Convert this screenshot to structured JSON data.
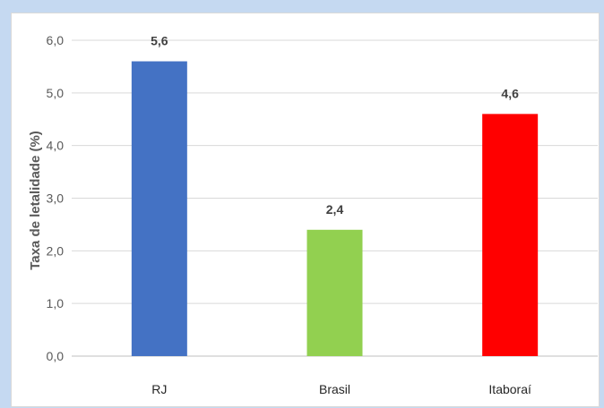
{
  "chart_data": {
    "type": "bar",
    "categories": [
      "RJ",
      "Brasil",
      "Itaboraí"
    ],
    "values": [
      5.6,
      2.4,
      4.6
    ],
    "value_labels": [
      "5,6",
      "2,4",
      "4,6"
    ],
    "ylabel": "Taxa de letalidade (%)",
    "ylim": [
      0,
      6
    ],
    "yticks": [
      "0,0",
      "1,0",
      "2,0",
      "3,0",
      "4,0",
      "5,0",
      "6,0"
    ],
    "grid": true,
    "colors": [
      "#4472c4",
      "#92d050",
      "#ff0000"
    ]
  }
}
